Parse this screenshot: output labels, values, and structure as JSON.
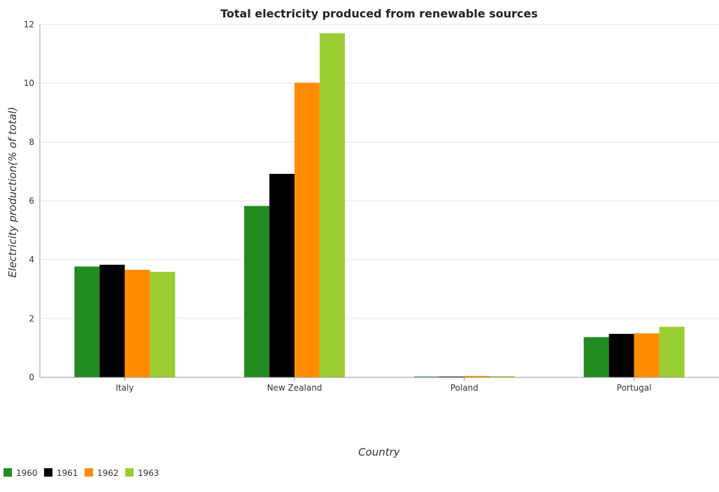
{
  "chart_data": {
    "type": "bar",
    "title": "Total electricity produced from renewable sources",
    "xlabel": "Country",
    "ylabel": "Electricity production(% of total)",
    "categories": [
      "Italy",
      "New Zealand",
      "Poland",
      "Portugal"
    ],
    "ylim": [
      0,
      12
    ],
    "yticks": [
      0,
      2,
      4,
      6,
      8,
      10,
      12
    ],
    "grid": true,
    "legend_position": "bottom-left",
    "series": [
      {
        "name": "1960",
        "color": "#228b22",
        "values": [
          3.77,
          5.83,
          0.03,
          1.37
        ]
      },
      {
        "name": "1961",
        "color": "#000000",
        "values": [
          3.83,
          6.92,
          0.03,
          1.48
        ]
      },
      {
        "name": "1962",
        "color": "#ff8c00",
        "values": [
          3.66,
          10.02,
          0.05,
          1.5
        ]
      },
      {
        "name": "1963",
        "color": "#9acd32",
        "values": [
          3.59,
          11.7,
          0.04,
          1.72
        ]
      }
    ]
  }
}
